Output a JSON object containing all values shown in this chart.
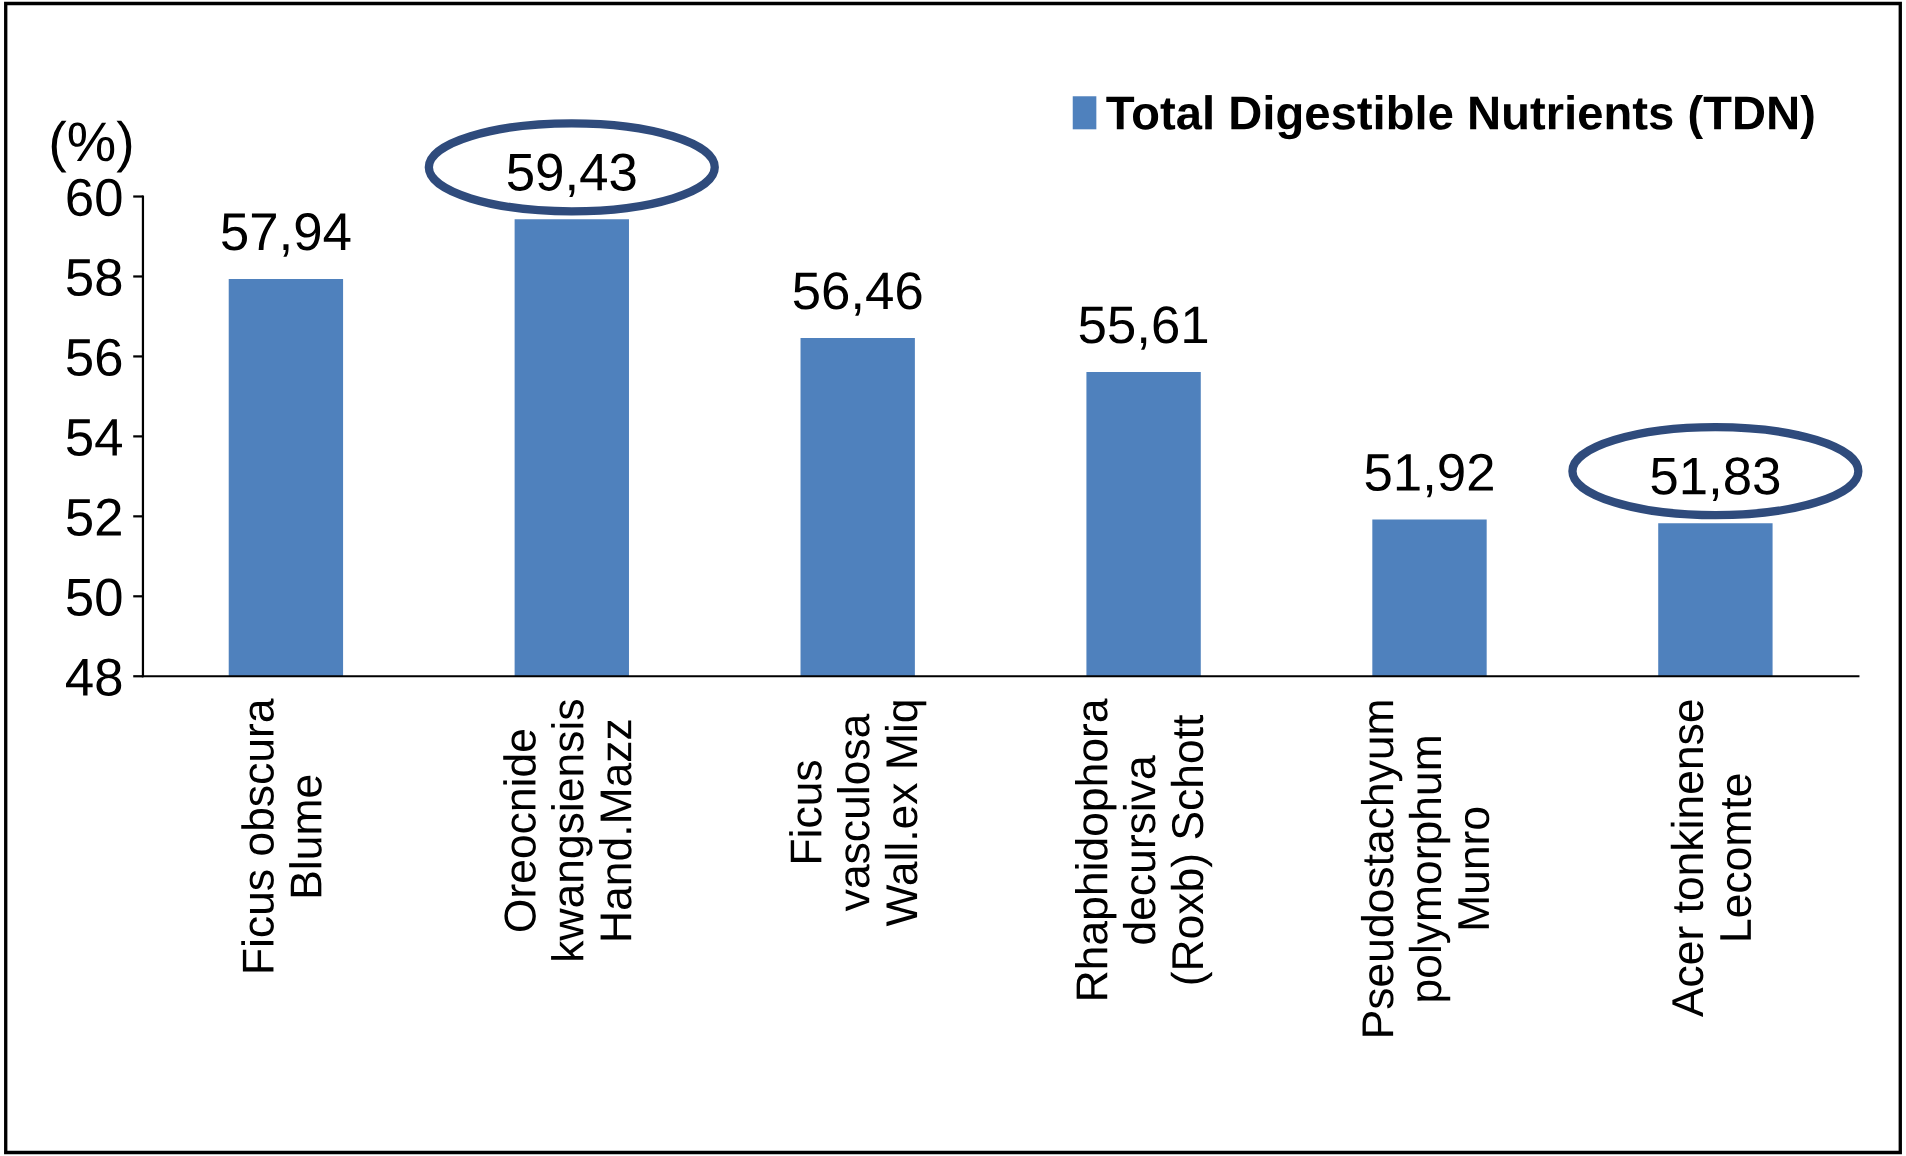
{
  "chart_data": {
    "type": "bar",
    "ylabel": "(%)",
    "categories": [
      "Ficus obscura\nBlume",
      "Oreocnide\nkwangsiensis\nHand.Mazz",
      "Ficus\nvasculosa\nWall.ex Miq",
      "Rhaphidophora\ndecursiva\n(Roxb) Schott",
      "Pseudostachyum\npolymorphum\nMunro",
      "Acer tonkinense\nLecomte"
    ],
    "series": [
      {
        "name": "Total Digestible Nutrients (TDN)",
        "color": "#4f81bd",
        "values": [
          57.94,
          59.43,
          56.46,
          55.61,
          51.92,
          51.83
        ],
        "value_labels": [
          "57,94",
          "59,43",
          "56,46",
          "55,61",
          "51,92",
          "51,83"
        ]
      }
    ],
    "ylim": [
      48,
      60
    ],
    "yticks": [
      48,
      50,
      52,
      54,
      56,
      58,
      60
    ],
    "legend": "top right",
    "grid": false
  }
}
